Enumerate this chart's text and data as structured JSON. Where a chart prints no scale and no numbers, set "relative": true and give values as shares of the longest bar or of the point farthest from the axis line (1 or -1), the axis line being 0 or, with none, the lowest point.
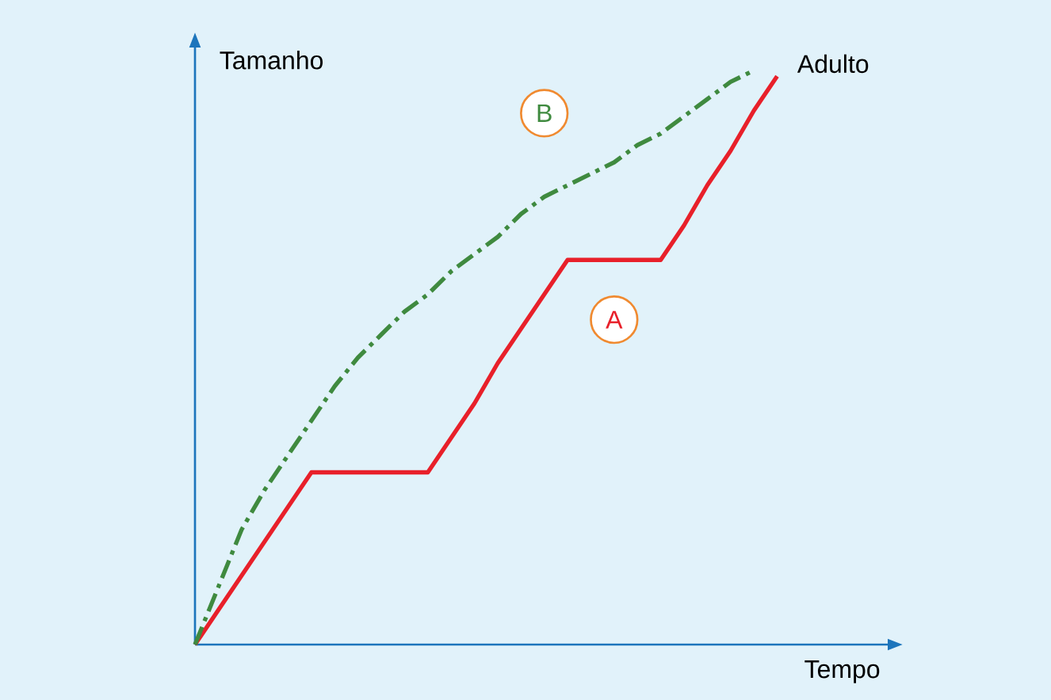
{
  "chart_data": {
    "type": "line",
    "relative": true,
    "xlabel": "Tempo",
    "ylabel": "Tamanho",
    "categories": [
      null,
      null,
      null,
      null,
      null,
      null,
      null,
      null,
      null,
      null,
      null,
      null,
      null,
      null,
      null,
      null,
      null,
      null,
      null,
      null,
      null,
      null,
      null,
      null,
      null,
      null
    ],
    "series": [
      {
        "name": "A",
        "color": "#e8202a",
        "line_style": "solid",
        "values": [
          0,
          0.06,
          0.12,
          0.18,
          0.24,
          0.3,
          0.3,
          0.3,
          0.3,
          0.3,
          0.3,
          0.36,
          0.42,
          0.49,
          0.55,
          0.61,
          0.67,
          0.67,
          0.67,
          0.67,
          0.67,
          0.73,
          0.8,
          0.86,
          0.93,
          0.99
        ]
      },
      {
        "name": "B",
        "color": "#3f8a3f",
        "line_style": "dashed",
        "values": [
          0,
          0.1,
          0.2,
          0.27,
          0.33,
          0.39,
          0.45,
          0.5,
          0.54,
          0.58,
          0.61,
          0.65,
          0.68,
          0.71,
          0.75,
          0.78,
          0.8,
          0.82,
          0.84,
          0.87,
          0.89,
          0.92,
          0.95,
          0.98,
          1.0,
          null
        ]
      }
    ],
    "annotations": [
      "Adulto"
    ]
  }
}
